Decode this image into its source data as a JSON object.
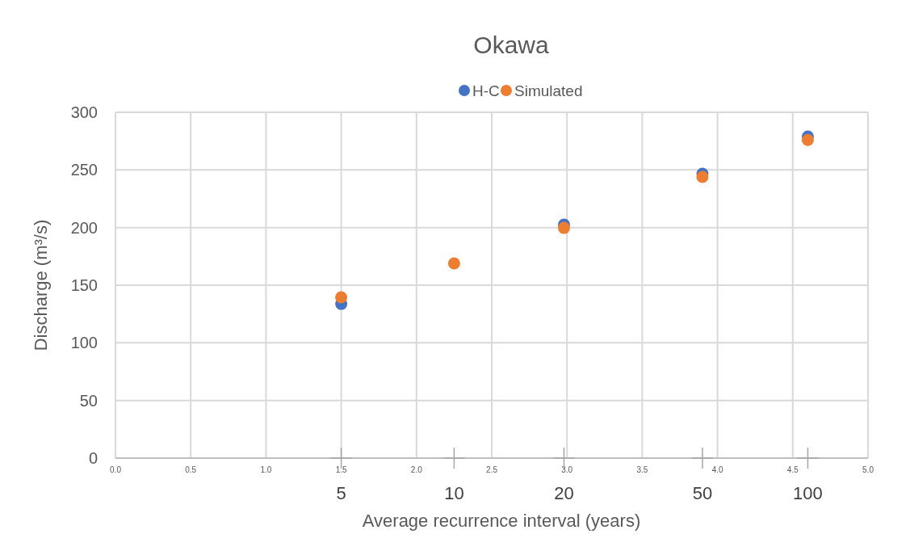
{
  "chart_data": {
    "type": "scatter",
    "title": "Okawa",
    "xlabel": "Average recurrence interval (years)",
    "ylabel": "Discharge (m³/s)",
    "x": [
      1.5,
      2.25,
      2.98,
      3.9,
      4.6
    ],
    "series": [
      {
        "name": "H-C",
        "color": "#4472c4",
        "values": [
          133.8,
          null,
          202.5,
          246.7,
          278.9
        ]
      },
      {
        "name": "Simulated",
        "color": "#ed7d31",
        "values": [
          139.5,
          168.9,
          199.7,
          243.9,
          276
        ]
      }
    ],
    "xlim": [
      0,
      5
    ],
    "xticks": [
      {
        "value": 0,
        "label": "0.0"
      },
      {
        "value": 0.5,
        "label": "0.5"
      },
      {
        "value": 1,
        "label": "1.0"
      },
      {
        "value": 1.5,
        "label": "1.5"
      },
      {
        "value": 2,
        "label": "2.0"
      },
      {
        "value": 2.5,
        "label": "2.5"
      },
      {
        "value": 3,
        "label": "3.0"
      },
      {
        "value": 3.5,
        "label": "3.5"
      },
      {
        "value": 4,
        "label": "4.0"
      },
      {
        "value": 4.5,
        "label": "4.5"
      },
      {
        "value": 5,
        "label": "5.0"
      }
    ],
    "annotations": [
      "5",
      "10",
      "20",
      "50",
      "100"
    ],
    "ylim": [
      0,
      300
    ],
    "yticks": [
      0,
      50,
      100,
      150,
      200,
      250,
      300
    ],
    "grid": true,
    "legend": "top",
    "marker": "circle"
  }
}
